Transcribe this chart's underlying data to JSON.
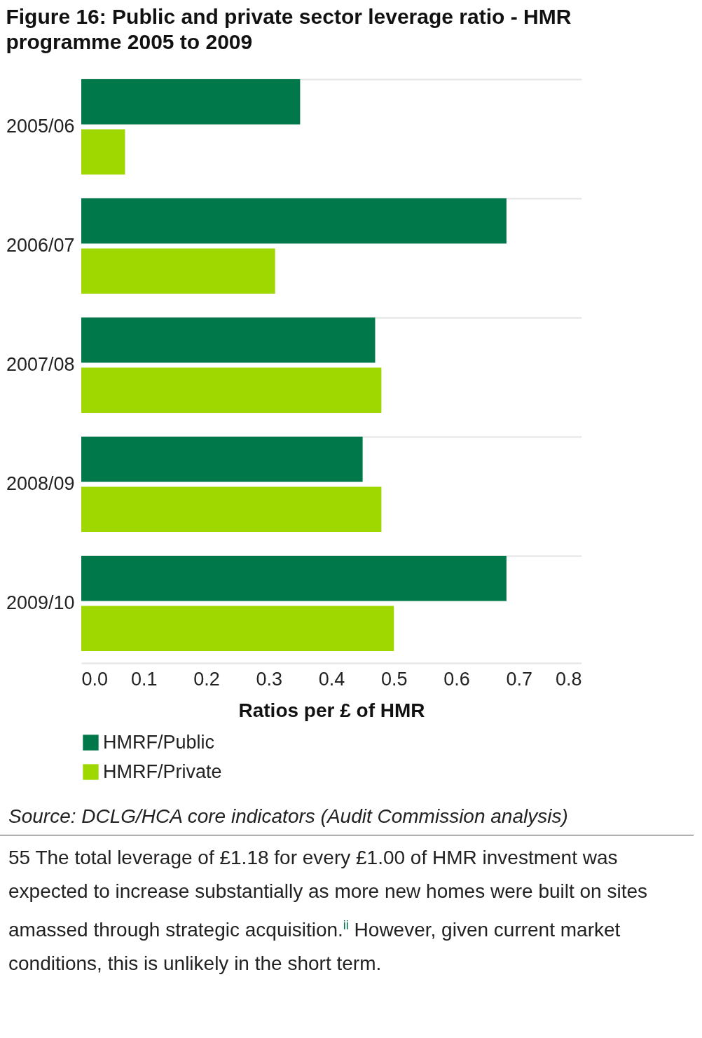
{
  "chart_data": {
    "type": "bar",
    "orientation": "horizontal",
    "title": "Figure 16: Public and private sector leverage ratio - HMR programme 2005 to 2009",
    "xlabel": "Ratios per £ of HMR",
    "categories": [
      "2005/06",
      "2006/07",
      "2007/08",
      "2008/09",
      "2009/10"
    ],
    "series": [
      {
        "name": "HMRF/Public",
        "color": "#00784a",
        "values": [
          0.35,
          0.68,
          0.47,
          0.45,
          0.68
        ]
      },
      {
        "name": "HMRF/Private",
        "color": "#9ed800",
        "values": [
          0.07,
          0.31,
          0.48,
          0.48,
          0.5
        ]
      }
    ],
    "xlim": [
      0,
      0.8
    ],
    "xticks": [
      {
        "value": 0,
        "label": "0.0"
      },
      0.1,
      0.2,
      0.3,
      0.4,
      0.5,
      0.6,
      0.7,
      0.8
    ],
    "grid": "y",
    "legend": "bottom left",
    "annotations": [
      "Source: DCLG/HCA core indicators (Audit Commission analysis)",
      "55 The total leverage of £1.18 for every £1.00 of HMR investment was expected to increase substantially as more new homes were built on sites amassed through strategic acquisition.$^{ii}$ However, given current market conditions, this is unlikely in the short term."
    ]
  }
}
